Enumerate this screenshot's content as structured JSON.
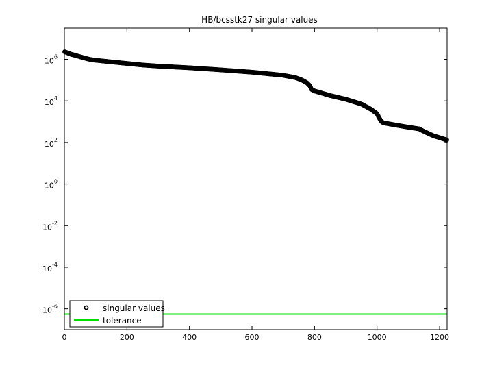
{
  "chart_data": {
    "type": "scatter",
    "title": "HB/bcsstk27 singular values",
    "xlabel": "",
    "ylabel": "",
    "xlim": [
      0,
      1224
    ],
    "ylim": [
      1e-07,
      31620000.0
    ],
    "yscale": "log",
    "xticks": [
      "0",
      "200",
      "400",
      "600",
      "800",
      "1000",
      "1200"
    ],
    "xtick_values": [
      0,
      200,
      400,
      600,
      800,
      1000,
      1200
    ],
    "yticks": [
      {
        "base": "10",
        "exp": "6",
        "value": 1000000.0
      },
      {
        "base": "10",
        "exp": "4",
        "value": 10000.0
      },
      {
        "base": "10",
        "exp": "2",
        "value": 100.0
      },
      {
        "base": "10",
        "exp": "0",
        "value": 1
      },
      {
        "base": "10",
        "exp": "-2",
        "value": 0.01
      },
      {
        "base": "10",
        "exp": "-4",
        "value": 0.0001
      },
      {
        "base": "10",
        "exp": "-6",
        "value": 1e-06
      }
    ],
    "grid": false,
    "legend_position": "bottom-left",
    "series": [
      {
        "name": "singular values",
        "marker": "circle",
        "color": "#000000",
        "curve_x": [
          1,
          20,
          40,
          60,
          80,
          100,
          150,
          200,
          250,
          300,
          400,
          500,
          600,
          700,
          740,
          760,
          775,
          785,
          790,
          800,
          850,
          900,
          950,
          980,
          1000,
          1005,
          1010,
          1015,
          1020,
          1050,
          1100,
          1135,
          1150,
          1180,
          1200,
          1224
        ],
        "curve_y": [
          2300000,
          1780000,
          1470000,
          1200000,
          1000000,
          900000,
          750000,
          630000,
          530000,
          470000,
          390000,
          310000,
          240000,
          170000,
          130000,
          100000,
          75000,
          54000,
          36000,
          30000,
          18000,
          12000,
          7000,
          4000,
          2400,
          1700,
          1250,
          1000,
          880,
          730,
          540,
          450,
          340,
          210,
          170,
          130
        ]
      },
      {
        "name": "tolerance",
        "marker": "line",
        "color": "#00dd00",
        "value": 5.5e-07
      }
    ]
  }
}
